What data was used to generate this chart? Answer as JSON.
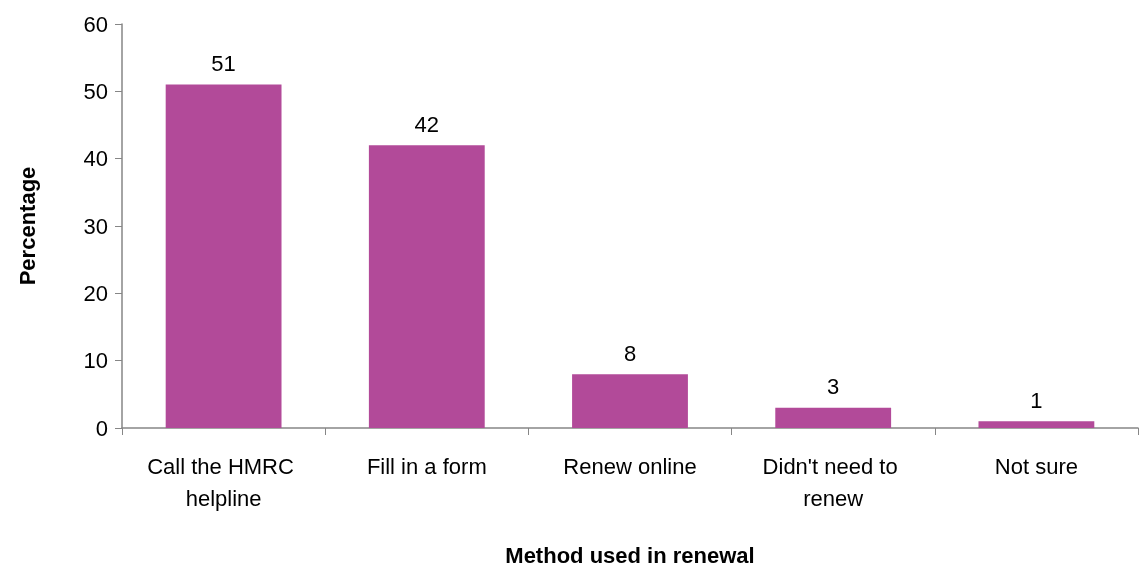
{
  "chart_data": {
    "type": "bar",
    "xlabel": "Method used in renewal",
    "ylabel": "Percentage",
    "categories": [
      "Call the HMRC helpline",
      "Fill in a form",
      "Renew online",
      "Didn't need to renew",
      "Not sure"
    ],
    "values": [
      51,
      42,
      8,
      3,
      1
    ],
    "color": "#b24a99",
    "ylim": [
      0,
      60
    ],
    "yticks": [
      0,
      10,
      20,
      30,
      40,
      50,
      60
    ],
    "grid": false,
    "data_labels": true
  }
}
